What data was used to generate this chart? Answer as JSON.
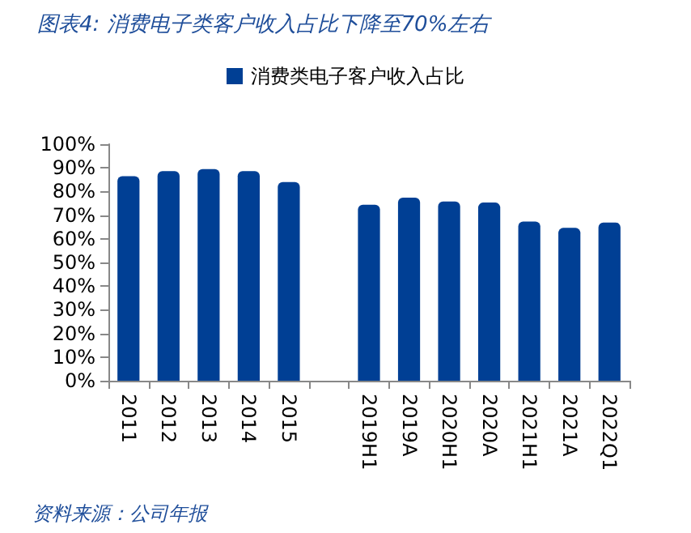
{
  "chart_data": {
    "type": "bar",
    "title": "图表4: 消费电子类客户收入占比下降至70%左右",
    "annotations": [
      "资料来源：公司年报"
    ],
    "categories": [
      "2011",
      "2012",
      "2013",
      "2014",
      "2015",
      null,
      "2019H1",
      "2019A",
      "2020H1",
      "2020A",
      "2021H1",
      "2021A",
      "2022Q1"
    ],
    "series": [
      {
        "name": "消费类电子客户收入占比",
        "color": "#003f94",
        "values": [
          86.5,
          88.6,
          89.5,
          88.6,
          84.0,
          null,
          74.4,
          77.4,
          75.8,
          75.3,
          67.3,
          64.6,
          66.9
        ]
      }
    ],
    "ylim": [
      0,
      100
    ],
    "yticks": [
      {
        "value": 0,
        "label": "0%"
      },
      {
        "value": 10,
        "label": "10%"
      },
      {
        "value": 20,
        "label": "20%"
      },
      {
        "value": 30,
        "label": "30%"
      },
      {
        "value": 40,
        "label": "40%"
      },
      {
        "value": 50,
        "label": "50%"
      },
      {
        "value": 60,
        "label": "60%"
      },
      {
        "value": 70,
        "label": "70%"
      },
      {
        "value": 80,
        "label": "80%"
      },
      {
        "value": 90,
        "label": "90%"
      },
      {
        "value": 100,
        "label": "100%"
      }
    ],
    "legend": "top",
    "grid": false
  }
}
